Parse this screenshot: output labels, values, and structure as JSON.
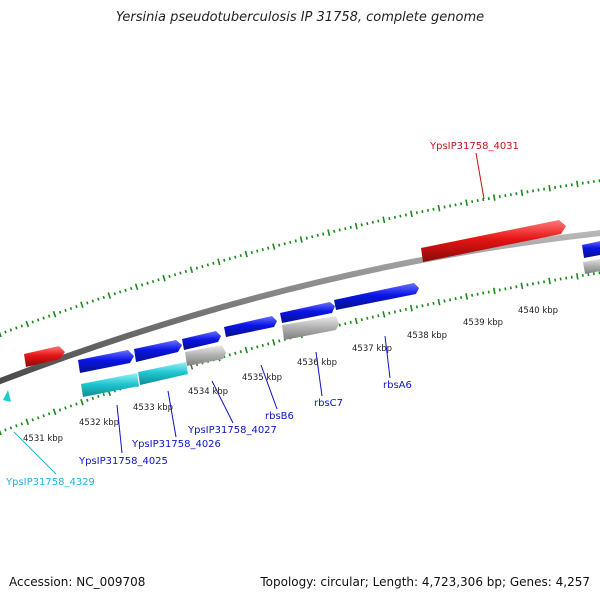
{
  "title": "Yersinia pseudotuberculosis IP 31758, complete genome",
  "footer": {
    "accession": "Accession: NC_009708",
    "summary": "Topology: circular; Length: 4,723,306 bp; Genes: 4,257"
  },
  "colors": {
    "forward_gene": "#0a14e6",
    "reverse_gene_highlight": "#e61414",
    "rna_gene": "#20c8d2",
    "pseudo_gene": "#b4b4b4",
    "backbone": "#7a7a7a",
    "tick": "#1a8a1a",
    "scale_label": "#222222",
    "forward_label": "#0a14c8",
    "reverse_label": "#c81414",
    "rna_label": "#20b4dc"
  },
  "scale_labels": [
    "4531 kbp",
    "4532 kbp",
    "4533 kbp",
    "4534 kbp",
    "4535 kbp",
    "4536 kbp",
    "4537 kbp",
    "4538 kbp",
    "4539 kbp",
    "4540 kbp"
  ],
  "gene_labels": [
    {
      "id": "ypsip31758-4031",
      "text": "YpsIP31758_4031",
      "kind": "reverse"
    },
    {
      "id": "rbsa6",
      "text": "rbsA6",
      "kind": "forward"
    },
    {
      "id": "rbsc7",
      "text": "rbsC7",
      "kind": "forward"
    },
    {
      "id": "rbsb6",
      "text": "rbsB6",
      "kind": "forward"
    },
    {
      "id": "ypsip31758-4027",
      "text": "YpsIP31758_4027",
      "kind": "forward"
    },
    {
      "id": "ypsip31758-4026",
      "text": "YpsIP31758_4026",
      "kind": "forward"
    },
    {
      "id": "ypsip31758-4025",
      "text": "YpsIP31758_4025",
      "kind": "forward"
    },
    {
      "id": "ypsip31758-4329",
      "text": "YpsIP31758_4329",
      "kind": "rna"
    }
  ]
}
